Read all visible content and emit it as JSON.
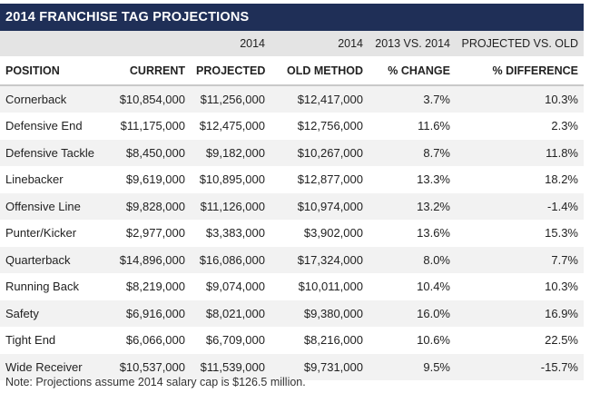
{
  "title": "2014 FRANCHISE TAG PROJECTIONS",
  "super_headers": [
    "",
    "",
    "2014",
    "2014",
    "2013 VS. 2014",
    "PROJECTED VS. OLD"
  ],
  "column_headers": [
    "POSITION",
    "CURRENT",
    "PROJECTED",
    "OLD METHOD",
    "% CHANGE",
    "% DIFFERENCE"
  ],
  "rows": [
    [
      "Cornerback",
      "$10,854,000",
      "$11,256,000",
      "$12,417,000",
      "3.7%",
      "10.3%"
    ],
    [
      "Defensive End",
      "$11,175,000",
      "$12,475,000",
      "$12,756,000",
      "11.6%",
      "2.3%"
    ],
    [
      "Defensive Tackle",
      "$8,450,000",
      "$9,182,000",
      "$10,267,000",
      "8.7%",
      "11.8%"
    ],
    [
      "Linebacker",
      "$9,619,000",
      "$10,895,000",
      "$12,877,000",
      "13.3%",
      "18.2%"
    ],
    [
      "Offensive Line",
      "$9,828,000",
      "$11,126,000",
      "$10,974,000",
      "13.2%",
      "-1.4%"
    ],
    [
      "Punter/Kicker",
      "$2,977,000",
      "$3,383,000",
      "$3,902,000",
      "13.6%",
      "15.3%"
    ],
    [
      "Quarterback",
      "$14,896,000",
      "$16,086,000",
      "$17,324,000",
      "8.0%",
      "7.7%"
    ],
    [
      "Running Back",
      "$8,219,000",
      "$9,074,000",
      "$10,011,000",
      "10.4%",
      "10.3%"
    ],
    [
      "Safety",
      "$6,916,000",
      "$8,021,000",
      "$9,380,000",
      "16.0%",
      "16.9%"
    ],
    [
      "Tight End",
      "$6,066,000",
      "$6,709,000",
      "$8,216,000",
      "10.6%",
      "22.5%"
    ],
    [
      "Wide Receiver",
      "$10,537,000",
      "$11,539,000",
      "$9,731,000",
      "9.5%",
      "-15.7%"
    ]
  ],
  "note": "Note: Projections assume 2014 salary cap is $126.5 million.",
  "colors": {
    "title_bar": "#1f2f57",
    "super_header_bg": "#e4e4e4",
    "stripe": "#f2f2f2"
  }
}
